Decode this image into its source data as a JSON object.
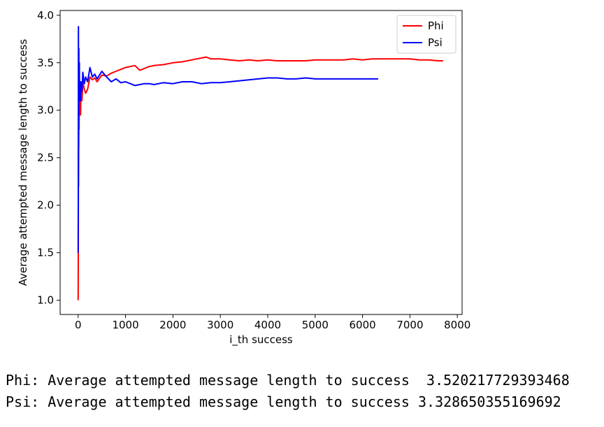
{
  "chart_data": {
    "type": "line",
    "xlabel": "i_th success",
    "ylabel": "Average attempted message length to success",
    "xlim": [
      -380,
      8100
    ],
    "ylim": [
      0.85,
      4.05
    ],
    "xticks": [
      0,
      1000,
      2000,
      3000,
      4000,
      5000,
      6000,
      7000,
      8000
    ],
    "yticks": [
      1.0,
      1.5,
      2.0,
      2.5,
      3.0,
      3.5,
      4.0
    ],
    "ytick_labels": [
      "1.0",
      "1.5",
      "2.0",
      "2.5",
      "3.0",
      "3.5",
      "4.0"
    ],
    "legend_position": "top-right",
    "series": [
      {
        "name": "Phi",
        "color": "#ff0000",
        "x": [
          0,
          3,
          6,
          10,
          15,
          20,
          25,
          30,
          40,
          50,
          60,
          80,
          100,
          130,
          160,
          200,
          250,
          300,
          350,
          400,
          500,
          600,
          700,
          800,
          900,
          1000,
          1100,
          1200,
          1300,
          1400,
          1500,
          1600,
          1800,
          2000,
          2200,
          2400,
          2600,
          2700,
          2800,
          3000,
          3200,
          3400,
          3600,
          3800,
          4000,
          4200,
          4400,
          4600,
          4800,
          5000,
          5200,
          5400,
          5600,
          5800,
          6000,
          6200,
          6400,
          6600,
          6800,
          7000,
          7200,
          7400,
          7600,
          7700
        ],
        "y": [
          1.0,
          1.5,
          2.6,
          2.2,
          3.0,
          2.8,
          3.25,
          3.0,
          3.1,
          2.95,
          3.2,
          3.1,
          3.3,
          3.22,
          3.18,
          3.22,
          3.35,
          3.32,
          3.34,
          3.3,
          3.37,
          3.36,
          3.39,
          3.41,
          3.43,
          3.45,
          3.46,
          3.47,
          3.42,
          3.44,
          3.46,
          3.47,
          3.48,
          3.5,
          3.51,
          3.53,
          3.55,
          3.56,
          3.54,
          3.54,
          3.53,
          3.52,
          3.53,
          3.52,
          3.53,
          3.52,
          3.52,
          3.52,
          3.52,
          3.53,
          3.53,
          3.53,
          3.53,
          3.54,
          3.53,
          3.54,
          3.54,
          3.54,
          3.54,
          3.54,
          3.53,
          3.53,
          3.52,
          3.52
        ]
      },
      {
        "name": "Psi",
        "color": "#0000ff",
        "x": [
          0,
          3,
          6,
          10,
          15,
          20,
          25,
          30,
          40,
          50,
          60,
          80,
          100,
          130,
          160,
          200,
          250,
          300,
          350,
          400,
          500,
          600,
          700,
          800,
          900,
          1000,
          1100,
          1200,
          1300,
          1400,
          1500,
          1600,
          1800,
          2000,
          2200,
          2400,
          2600,
          2800,
          3000,
          3200,
          3400,
          3600,
          3800,
          4000,
          4200,
          4400,
          4600,
          4800,
          5000,
          5200,
          5400,
          5600,
          5800,
          6000,
          6200,
          6330
        ],
        "y": [
          1.5,
          2.0,
          3.88,
          2.6,
          3.65,
          3.1,
          3.5,
          3.2,
          3.3,
          3.1,
          3.3,
          3.2,
          3.4,
          3.28,
          3.35,
          3.3,
          3.45,
          3.35,
          3.38,
          3.33,
          3.41,
          3.35,
          3.3,
          3.33,
          3.29,
          3.3,
          3.28,
          3.26,
          3.27,
          3.28,
          3.28,
          3.27,
          3.29,
          3.28,
          3.3,
          3.3,
          3.28,
          3.29,
          3.29,
          3.3,
          3.31,
          3.32,
          3.33,
          3.34,
          3.34,
          3.33,
          3.33,
          3.34,
          3.33,
          3.33,
          3.33,
          3.33,
          3.33,
          3.33,
          3.33,
          3.33
        ]
      }
    ]
  },
  "output": {
    "phi_line": "Phi: Average attempted message length to success  3.520217729393468",
    "psi_line": "Psi: Average attempted message length to success 3.328650355169692"
  }
}
